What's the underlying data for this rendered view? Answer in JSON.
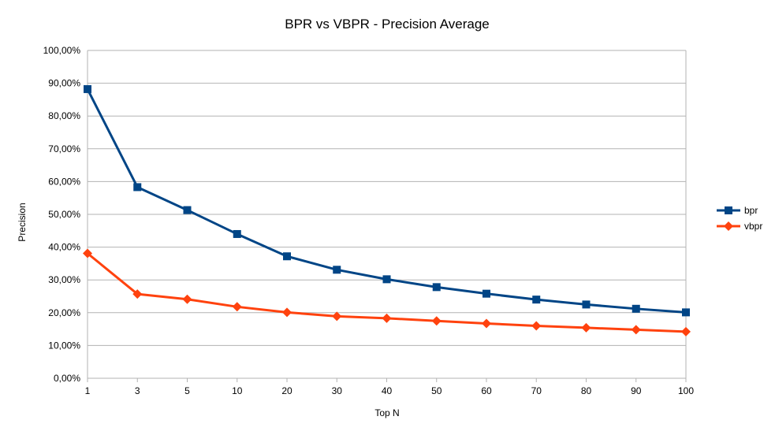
{
  "chart_data": {
    "type": "line",
    "title": "BPR vs VBPR - Precision Average",
    "xlabel": "Top N",
    "ylabel": "Precision",
    "categories": [
      "1",
      "3",
      "5",
      "10",
      "20",
      "30",
      "40",
      "50",
      "60",
      "70",
      "80",
      "90",
      "100"
    ],
    "y_ticks": [
      "0,00%",
      "10,00%",
      "20,00%",
      "30,00%",
      "40,00%",
      "50,00%",
      "60,00%",
      "70,00%",
      "80,00%",
      "90,00%",
      "100,00%"
    ],
    "ylim": [
      0,
      1
    ],
    "grid": true,
    "legend_position": "right",
    "series": [
      {
        "name": "bpr",
        "color": "#004586",
        "marker": "square",
        "values": [
          0.882,
          0.583,
          0.513,
          0.44,
          0.372,
          0.331,
          0.302,
          0.278,
          0.258,
          0.24,
          0.225,
          0.212,
          0.201
        ]
      },
      {
        "name": "vbpr",
        "color": "#ff420e",
        "marker": "diamond",
        "values": [
          0.381,
          0.257,
          0.241,
          0.218,
          0.201,
          0.189,
          0.183,
          0.175,
          0.167,
          0.16,
          0.154,
          0.148,
          0.142
        ]
      }
    ]
  }
}
